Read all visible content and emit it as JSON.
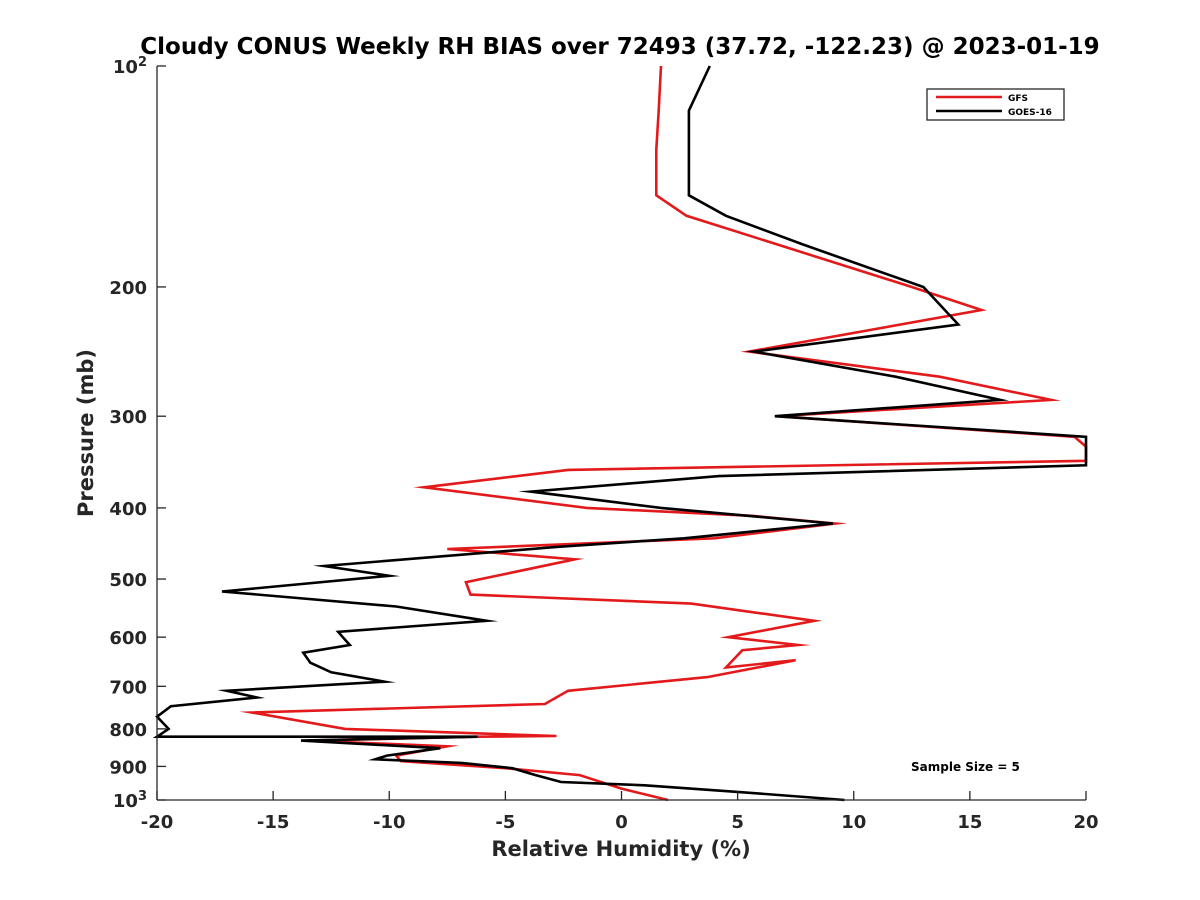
{
  "chart_data": {
    "type": "line",
    "title": "Cloudy CONUS Weekly RH BIAS over 72493 (37.72, -122.23) @ 2023-01-19",
    "xlabel": "Relative Humidity (%)",
    "ylabel": "Pressure (mb)",
    "xlim": [
      -20,
      20
    ],
    "ylim": [
      1000,
      100
    ],
    "y_scale": "log",
    "grid": false,
    "legend_position": "top-right",
    "x_ticks": [
      -20,
      -15,
      -10,
      -5,
      0,
      5,
      10,
      15,
      20
    ],
    "x_tick_labels": [
      "-20",
      "-15",
      "-10",
      "-5",
      "0",
      "5",
      "10",
      "15",
      "20"
    ],
    "y_ticks": [
      100,
      200,
      300,
      400,
      500,
      600,
      700,
      800,
      900,
      1000
    ],
    "y_tick_labels": [
      {
        "base": "10",
        "exp": "2"
      },
      {
        "text": "200"
      },
      {
        "text": "300"
      },
      {
        "text": "400"
      },
      {
        "text": "500"
      },
      {
        "text": "600"
      },
      {
        "text": "700"
      },
      {
        "text": "800"
      },
      {
        "text": "900"
      },
      {
        "base": "10",
        "exp": "3"
      }
    ],
    "annotation": "Sample Size = 5",
    "series": [
      {
        "name": "GFS",
        "color": "#e31a1c",
        "x": [
          2.0,
          0.0,
          -1.8,
          -5.0,
          -9.5,
          -9.7,
          -7.5,
          -13.5,
          -6.2,
          -2.8,
          -11.9,
          -15.9,
          -3.3,
          -2.3,
          3.7,
          7.5,
          4.5,
          5.2,
          7.6,
          4.6,
          8.3,
          3.0,
          -6.5,
          -6.7,
          -2.0,
          -7.5,
          4.0,
          9.2,
          5.6,
          -1.5,
          -8.5,
          -2.3,
          20.0,
          20.0,
          19.5,
          6.7,
          18.5,
          13.7,
          5.5,
          15.5,
          12.5,
          6.7,
          2.8,
          1.5,
          1.5,
          1.6,
          1.7
        ],
        "y": [
          1000,
          965,
          925,
          905,
          885,
          870,
          845,
          830,
          820,
          818,
          800,
          760,
          740,
          710,
          680,
          645,
          660,
          625,
          615,
          600,
          570,
          540,
          525,
          505,
          470,
          455,
          440,
          420,
          410,
          400,
          375,
          355,
          345,
          330,
          320,
          300,
          285,
          265,
          245,
          215,
          200,
          175,
          160,
          150,
          130,
          115,
          100
        ]
      },
      {
        "name": "GOES-16",
        "color": "#000000",
        "x": [
          9.6,
          5.0,
          1.0,
          -2.6,
          -3.7,
          -4.7,
          -6.9,
          -10.6,
          -10.1,
          -7.8,
          -13.8,
          -6.2,
          -20.0,
          -19.5,
          -20.0,
          -19.4,
          -15.7,
          -17.0,
          -10.2,
          -12.5,
          -13.4,
          -13.7,
          -11.7,
          -12.0,
          -12.2,
          -5.8,
          -9.7,
          -17.2,
          -10.0,
          -12.8,
          -2.8,
          2.7,
          9.1,
          1.7,
          -3.9,
          4.2,
          20.0,
          20.0,
          6.6,
          16.3,
          11.8,
          5.7,
          14.5,
          13.0,
          7.8,
          4.5,
          2.9,
          2.9,
          2.9,
          3.8
        ],
        "y": [
          1000,
          975,
          955,
          945,
          925,
          905,
          890,
          880,
          870,
          850,
          830,
          820,
          820,
          800,
          770,
          745,
          725,
          710,
          690,
          670,
          650,
          630,
          615,
          600,
          590,
          570,
          545,
          520,
          495,
          480,
          452,
          440,
          420,
          400,
          380,
          362,
          350,
          320,
          300,
          285,
          265,
          245,
          225,
          200,
          175,
          160,
          150,
          130,
          115,
          100
        ]
      }
    ]
  }
}
